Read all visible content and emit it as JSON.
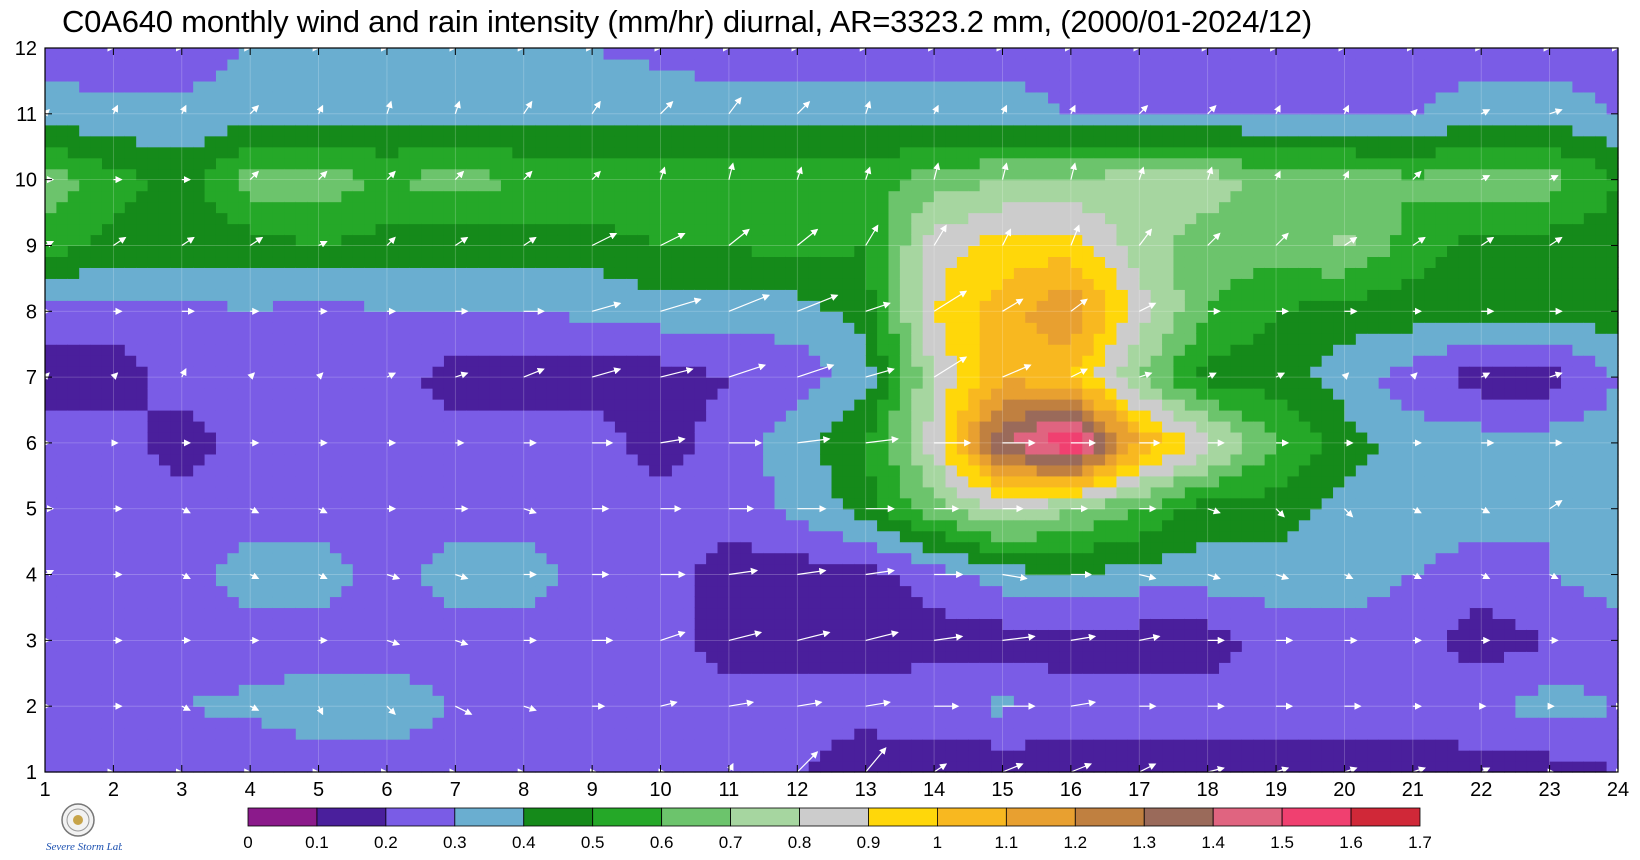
{
  "title": "C0A640 monthly wind and rain intensity (mm/hr) diurnal, AR=3323.2 mm, (2000/01-2024/12)",
  "logo": {
    "icon": "severe-storm-lab-logo",
    "text": "Severe Storm Lab."
  },
  "chart_data": {
    "type": "heatmap",
    "title": "C0A640 monthly wind and rain intensity (mm/hr) diurnal, AR=3323.2 mm, (2000/01-2024/12)",
    "xlabel": "",
    "ylabel": "",
    "xlim": [
      1,
      24
    ],
    "ylim": [
      1,
      12
    ],
    "x_ticks": [
      "1",
      "2",
      "3",
      "4",
      "5",
      "6",
      "7",
      "8",
      "9",
      "10",
      "11",
      "12",
      "13",
      "14",
      "15",
      "16",
      "17",
      "18",
      "19",
      "20",
      "21",
      "22",
      "23",
      "24"
    ],
    "y_ticks": [
      "1",
      "2",
      "3",
      "4",
      "5",
      "6",
      "7",
      "8",
      "9",
      "10",
      "11",
      "12"
    ],
    "grid": true,
    "colorbar": {
      "levels": [
        "0",
        "0.1",
        "0.2",
        "0.3",
        "0.4",
        "0.5",
        "0.6",
        "0.7",
        "0.8",
        "0.9",
        "1",
        "1.1",
        "1.2",
        "1.3",
        "1.4",
        "1.5",
        "1.6",
        "1.7"
      ],
      "colors": [
        "#8b1a8b",
        "#4a1f9c",
        "#7a5ce6",
        "#6aaed0",
        "#158a1a",
        "#25a828",
        "#6cc46c",
        "#a6d6a0",
        "#cccccc",
        "#ffd70a",
        "#f8b820",
        "#e8a030",
        "#c08040",
        "#9a6a5a",
        "#e06480",
        "#f04070",
        "#d02838"
      ]
    },
    "x": [
      1,
      2,
      3,
      4,
      5,
      6,
      7,
      8,
      9,
      10,
      11,
      12,
      13,
      14,
      15,
      16,
      17,
      18,
      19,
      20,
      21,
      22,
      23,
      24
    ],
    "y": [
      1,
      2,
      3,
      4,
      5,
      6,
      7,
      8,
      9,
      10,
      11,
      12
    ],
    "z": [
      [
        0.21,
        0.25,
        0.25,
        0.22,
        0.25,
        0.25,
        0.25,
        0.25,
        0.25,
        0.25,
        0.2,
        0.22,
        0.12,
        0.12,
        0.12,
        0.15,
        0.15,
        0.15,
        0.15,
        0.15,
        0.15,
        0.15,
        0.15,
        0.2
      ],
      [
        0.3,
        0.3,
        0.3,
        0.32,
        0.35,
        0.35,
        0.3,
        0.3,
        0.25,
        0.25,
        0.25,
        0.25,
        0.25,
        0.28,
        0.32,
        0.25,
        0.25,
        0.25,
        0.25,
        0.25,
        0.25,
        0.28,
        0.35,
        0.3
      ],
      [
        0.2,
        0.25,
        0.25,
        0.25,
        0.25,
        0.25,
        0.25,
        0.25,
        0.25,
        0.25,
        0.15,
        0.15,
        0.15,
        0.15,
        0.15,
        0.15,
        0.15,
        0.15,
        0.25,
        0.25,
        0.25,
        0.15,
        0.2,
        0.25
      ],
      [
        0.3,
        0.25,
        0.25,
        0.35,
        0.35,
        0.25,
        0.35,
        0.35,
        0.25,
        0.25,
        0.15,
        0.15,
        0.15,
        0.25,
        0.35,
        0.4,
        0.35,
        0.35,
        0.35,
        0.35,
        0.3,
        0.25,
        0.3,
        0.35
      ],
      [
        0.25,
        0.25,
        0.25,
        0.25,
        0.25,
        0.25,
        0.25,
        0.25,
        0.25,
        0.25,
        0.25,
        0.32,
        0.45,
        0.65,
        0.82,
        0.7,
        0.6,
        0.45,
        0.45,
        0.35,
        0.35,
        0.35,
        0.3,
        0.3
      ],
      [
        0.25,
        0.25,
        0.15,
        0.25,
        0.25,
        0.25,
        0.25,
        0.25,
        0.25,
        0.15,
        0.25,
        0.35,
        0.5,
        0.85,
        1.4,
        1.62,
        1.1,
        0.85,
        0.6,
        0.45,
        0.35,
        0.35,
        0.35,
        0.35
      ],
      [
        0.15,
        0.15,
        0.25,
        0.25,
        0.25,
        0.25,
        0.15,
        0.15,
        0.15,
        0.15,
        0.2,
        0.25,
        0.35,
        0.8,
        1.1,
        1.0,
        0.7,
        0.45,
        0.45,
        0.35,
        0.25,
        0.15,
        0.15,
        0.3
      ],
      [
        0.25,
        0.25,
        0.25,
        0.3,
        0.25,
        0.3,
        0.3,
        0.3,
        0.32,
        0.35,
        0.35,
        0.35,
        0.45,
        0.9,
        1.05,
        1.2,
        0.85,
        0.6,
        0.5,
        0.45,
        0.45,
        0.45,
        0.45,
        0.45
      ],
      [
        0.55,
        0.45,
        0.45,
        0.45,
        0.5,
        0.45,
        0.45,
        0.45,
        0.45,
        0.5,
        0.5,
        0.55,
        0.5,
        0.85,
        0.95,
        0.95,
        0.75,
        0.65,
        0.65,
        0.72,
        0.55,
        0.45,
        0.45,
        0.45
      ],
      [
        0.65,
        0.55,
        0.45,
        0.65,
        0.65,
        0.6,
        0.65,
        0.6,
        0.6,
        0.6,
        0.6,
        0.6,
        0.55,
        0.65,
        0.7,
        0.72,
        0.75,
        0.75,
        0.65,
        0.65,
        0.62,
        0.65,
        0.65,
        0.5
      ],
      [
        0.35,
        0.32,
        0.32,
        0.35,
        0.35,
        0.35,
        0.35,
        0.35,
        0.35,
        0.35,
        0.35,
        0.35,
        0.35,
        0.35,
        0.35,
        0.3,
        0.3,
        0.3,
        0.3,
        0.3,
        0.3,
        0.35,
        0.35,
        0.3
      ],
      [
        0.25,
        0.25,
        0.25,
        0.3,
        0.3,
        0.3,
        0.3,
        0.3,
        0.3,
        0.28,
        0.25,
        0.25,
        0.25,
        0.25,
        0.25,
        0.25,
        0.25,
        0.25,
        0.25,
        0.25,
        0.25,
        0.25,
        0.25,
        0.25
      ]
    ],
    "wind_u": [
      [
        0,
        0,
        0,
        0,
        0,
        0,
        0,
        0,
        0.1,
        0.1,
        0.1,
        0.5,
        0.5,
        0.3,
        0.5,
        0.5,
        0.4,
        0.4,
        0.3,
        0.3,
        0.3,
        0.2,
        0.1,
        0.1
      ],
      [
        0.1,
        0.2,
        0.2,
        0.2,
        0.1,
        0.2,
        0.4,
        0.3,
        0.3,
        0.4,
        0.6,
        0.6,
        0.6,
        0.6,
        0.8,
        0.6,
        0.4,
        0.4,
        0.4,
        0.4,
        0.2,
        0.1,
        0.1,
        0.1
      ],
      [
        0.1,
        0.2,
        0.2,
        0.2,
        0.2,
        0.3,
        0.3,
        0.3,
        0.5,
        0.6,
        0.8,
        0.8,
        0.8,
        0.7,
        0.8,
        0.6,
        0.5,
        0.4,
        0.4,
        0.3,
        0.2,
        0.2,
        0.2,
        0.2
      ],
      [
        0.2,
        0.2,
        0.2,
        0.2,
        0.2,
        0.3,
        0.3,
        0.3,
        0.4,
        0.6,
        0.7,
        0.7,
        0.7,
        0.7,
        0.6,
        0.5,
        0.4,
        0.3,
        0.3,
        0.2,
        0.2,
        0.2,
        0.2,
        0.2
      ],
      [
        0.2,
        0.2,
        0.2,
        0.2,
        0.2,
        0.2,
        0.3,
        0.3,
        0.4,
        0.5,
        0.6,
        0.7,
        0.7,
        0.6,
        0.5,
        0.4,
        0.4,
        0.3,
        0.2,
        0.2,
        0.2,
        0.2,
        0.3,
        0.2
      ],
      [
        0.1,
        0.1,
        0.2,
        0.2,
        0.2,
        0.2,
        0.2,
        0.3,
        0.5,
        0.6,
        0.8,
        0.8,
        0.8,
        0.9,
        0.8,
        0.6,
        0.5,
        0.4,
        0.3,
        0.2,
        0.2,
        0.3,
        0.3,
        0.3
      ],
      [
        0.1,
        0.1,
        0.1,
        0.1,
        0.1,
        0.2,
        0.3,
        0.5,
        0.7,
        0.8,
        0.9,
        0.9,
        0.7,
        0.8,
        0.7,
        0.4,
        0.3,
        0.2,
        0.2,
        0.1,
        0.1,
        0.2,
        0.3,
        0.2
      ],
      [
        0.1,
        0.2,
        0.3,
        0.2,
        0.2,
        0.2,
        0.3,
        0.5,
        0.7,
        1.0,
        1.0,
        1.0,
        0.6,
        0.8,
        0.5,
        0.4,
        0.4,
        0.3,
        0.3,
        0.3,
        0.2,
        0.3,
        0.3,
        0.2
      ],
      [
        0.2,
        0.3,
        0.3,
        0.3,
        0.2,
        0.2,
        0.3,
        0.3,
        0.6,
        0.6,
        0.5,
        0.5,
        0.3,
        0.3,
        0.2,
        0.2,
        0.3,
        0.3,
        0.3,
        0.3,
        0.3,
        0.3,
        0.3,
        0.2
      ],
      [
        0.2,
        0.2,
        0.2,
        0.2,
        0.2,
        0.2,
        0.2,
        0.2,
        0.2,
        0.1,
        0.1,
        0.1,
        0.1,
        0.1,
        0.1,
        0.1,
        0.1,
        0.1,
        0.1,
        0.1,
        0.2,
        0.2,
        0.2,
        0.2
      ],
      [
        0.1,
        0.1,
        0.1,
        0.2,
        0.1,
        0.1,
        0.1,
        0.2,
        0.2,
        0.3,
        0.3,
        0.3,
        0.1,
        0.1,
        0.1,
        0.1,
        0.2,
        0.2,
        0.1,
        0.1,
        0.1,
        0.2,
        0.3,
        0.3
      ],
      [
        0,
        0,
        0,
        0,
        0,
        0,
        0,
        0,
        0,
        0,
        0,
        0,
        0,
        0,
        0,
        0,
        0,
        0,
        0,
        0,
        0,
        0,
        0,
        0
      ]
    ],
    "wind_v": [
      [
        0,
        0,
        0,
        0,
        0,
        0,
        0,
        0,
        0,
        0,
        0.2,
        0.5,
        0.6,
        0.2,
        0.2,
        0.2,
        0.2,
        0.1,
        0.1,
        0.1,
        0.1,
        0.1,
        0,
        0
      ],
      [
        0,
        0,
        -0.1,
        -0.1,
        -0.2,
        -0.2,
        -0.2,
        -0.1,
        0,
        0.1,
        0.1,
        0.1,
        0.1,
        0,
        0,
        0.1,
        0,
        0,
        0,
        0,
        0,
        0,
        0,
        0
      ],
      [
        0,
        0,
        0,
        0,
        0,
        -0.1,
        -0.1,
        0,
        0,
        0.2,
        0.2,
        0.2,
        0.2,
        0.1,
        0.1,
        0.1,
        0.1,
        0,
        0,
        0,
        0,
        0,
        0,
        0
      ],
      [
        0.1,
        0,
        -0.1,
        -0.1,
        -0.1,
        -0.1,
        -0.1,
        0,
        0,
        0,
        0.1,
        0.1,
        0.1,
        0,
        -0.1,
        0,
        -0.1,
        -0.1,
        -0.1,
        -0.1,
        -0.1,
        -0.1,
        -0.1,
        -0.1
      ],
      [
        0,
        0,
        -0.1,
        -0.1,
        -0.1,
        0,
        0,
        -0.1,
        0,
        0,
        0,
        0,
        0,
        0,
        0,
        0,
        0,
        -0.1,
        -0.2,
        -0.2,
        -0.1,
        -0.1,
        0.2,
        -0.2
      ],
      [
        0,
        0,
        0,
        0,
        0,
        0,
        0,
        0,
        0,
        0.1,
        0,
        0.1,
        0.1,
        0,
        0,
        0,
        0,
        0,
        0,
        0,
        0,
        0,
        0,
        0
      ],
      [
        0.1,
        0.1,
        0.2,
        0.1,
        0.1,
        0.1,
        0.1,
        0.2,
        0.2,
        0.2,
        0.3,
        0.3,
        0.2,
        0.5,
        0.3,
        0.2,
        0.1,
        0.1,
        0.1,
        0.1,
        0.1,
        0.1,
        0.1,
        0.1
      ],
      [
        0,
        0,
        0,
        0,
        0,
        0,
        0,
        0,
        0.2,
        0.3,
        0.4,
        0.4,
        0.2,
        0.5,
        0.3,
        0.3,
        0.2,
        0,
        0,
        0,
        0,
        0,
        0,
        0
      ],
      [
        0.1,
        0.2,
        0.2,
        0.2,
        0.1,
        0.2,
        0.2,
        0.2,
        0.3,
        0.3,
        0.4,
        0.4,
        0.5,
        0.5,
        0.4,
        0.5,
        0.4,
        0.3,
        0.3,
        0.2,
        0.2,
        0.2,
        0.2,
        0.1
      ],
      [
        0,
        0,
        0,
        0.2,
        0.2,
        0.2,
        0.2,
        0.2,
        0.2,
        0.3,
        0.4,
        0.3,
        0.3,
        0.4,
        0.4,
        0.4,
        0.3,
        0.3,
        0.2,
        0.2,
        0.2,
        0.1,
        0.1,
        0.1
      ],
      [
        0.1,
        0.2,
        0.2,
        0.2,
        0.2,
        0.3,
        0.3,
        0.3,
        0.3,
        0.3,
        0.4,
        0.3,
        0.3,
        0.2,
        0.2,
        0.2,
        0.2,
        0.2,
        0.2,
        0.2,
        0.1,
        0.1,
        0.1,
        0.1
      ],
      [
        0,
        0,
        0,
        0,
        0,
        0,
        0,
        0,
        0,
        0,
        0,
        0,
        0,
        0,
        0,
        0,
        0,
        0,
        0,
        0,
        0,
        0,
        0,
        0
      ]
    ]
  }
}
